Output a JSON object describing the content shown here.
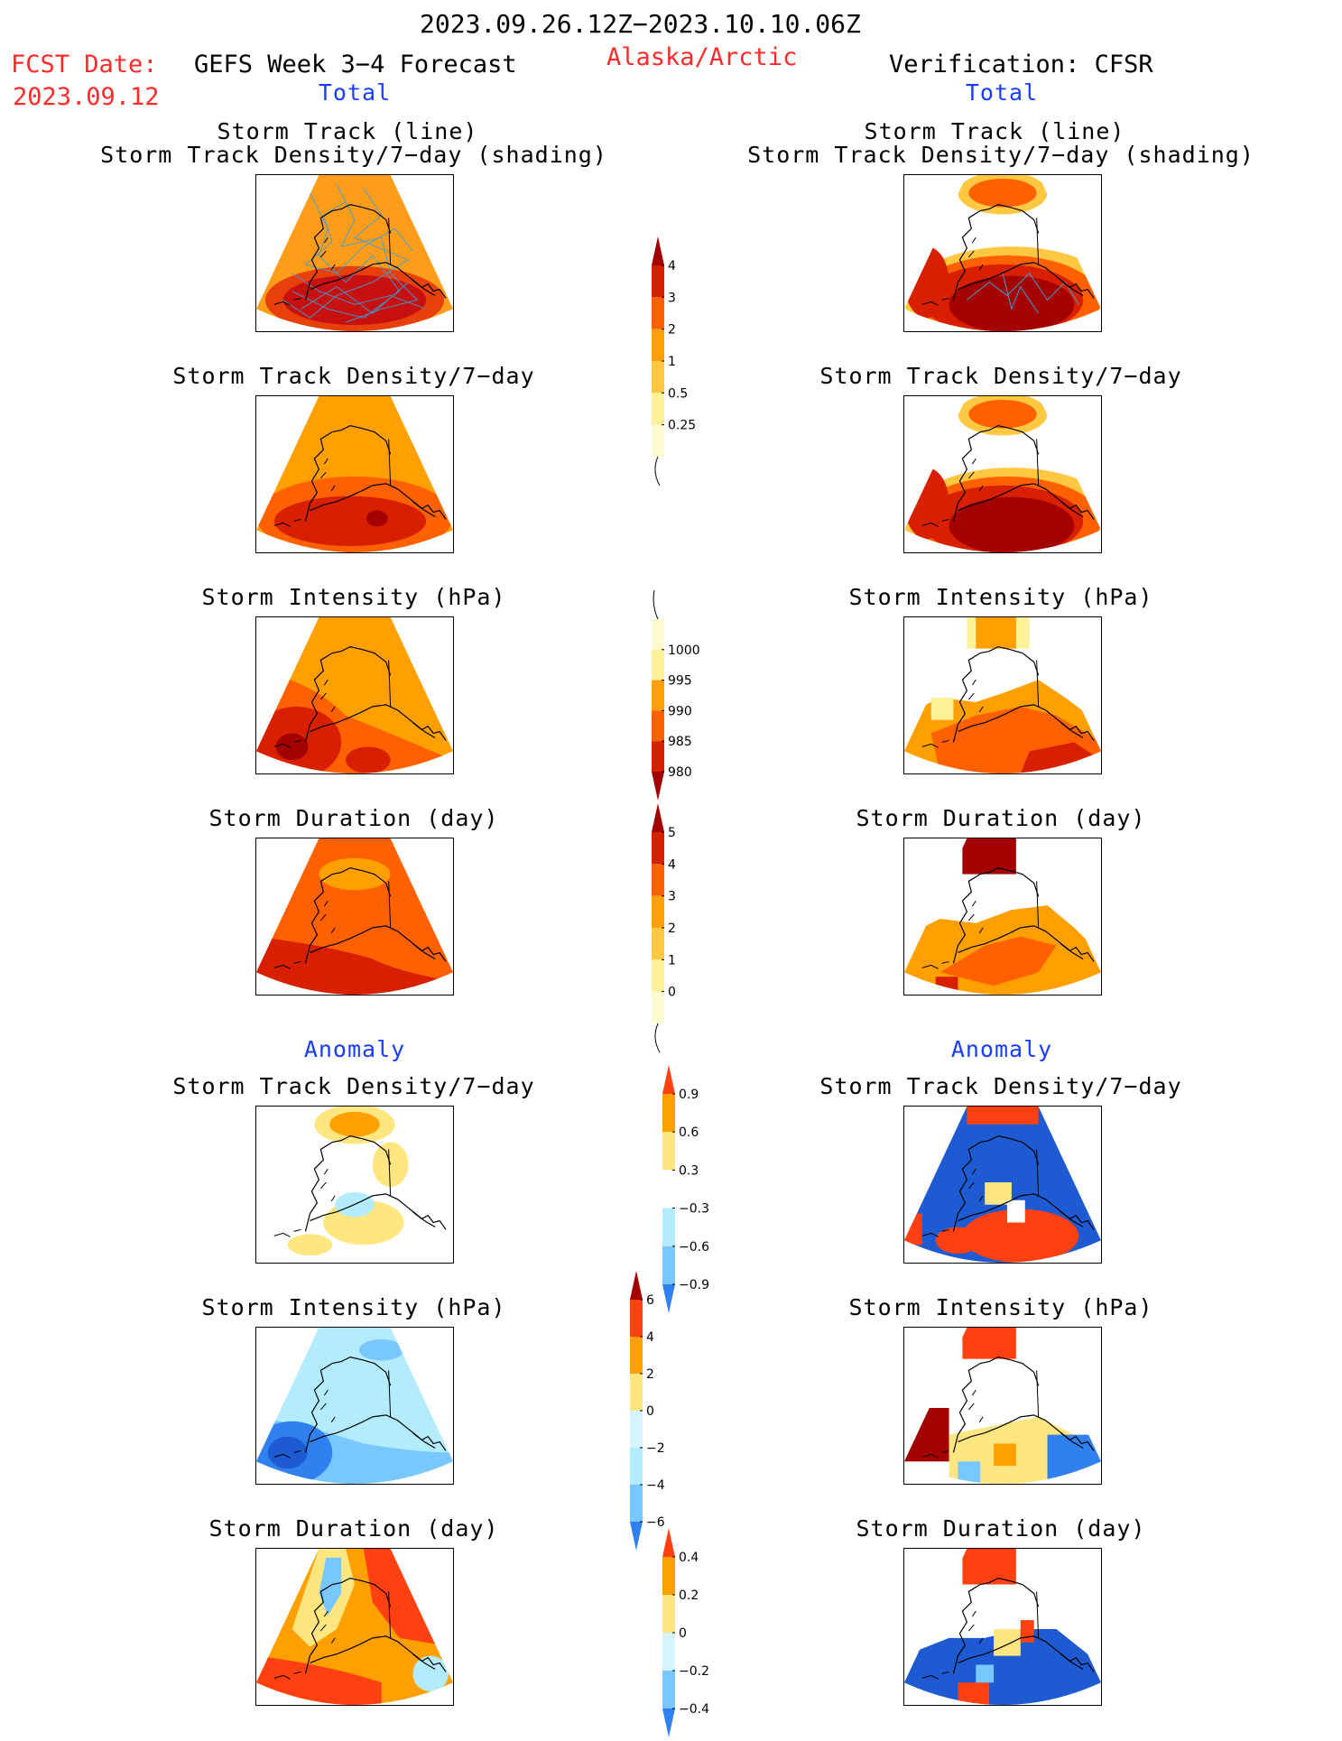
{
  "header": {
    "period": "2023.09.26.12Z−2023.10.10.06Z",
    "fcst_label": "FCST Date:",
    "fcst_date": "2023.09.12",
    "model": "GEFS Week 3−4 Forecast",
    "region": "Alaska/Arctic",
    "verification": "Verification: CFSR",
    "left_section": "Total",
    "right_section": "Total",
    "anomaly_left": "Anomaly",
    "anomaly_right": "Anomaly"
  },
  "panel_titles": {
    "track_line": "Storm Track (line)",
    "track_shading": "Storm Track Density/7−day (shading)",
    "density": "Storm Track Density/7−day",
    "intensity": "Storm Intensity (hPa)",
    "duration": "Storm Duration (day)"
  },
  "colorbars": {
    "density": {
      "labels": [
        "4",
        "3",
        "2",
        "1",
        "0.5",
        "0.25"
      ],
      "colors": [
        "#a50000",
        "#d82000",
        "#ff6000",
        "#ffa000",
        "#ffc840",
        "#fff09a",
        "#fffbd0"
      ]
    },
    "intensity": {
      "labels": [
        "1000",
        "995",
        "990",
        "985",
        "980"
      ],
      "colors": [
        "#fffbd0",
        "#fff09a",
        "#ffa000",
        "#ff6000",
        "#d82000",
        "#a50000"
      ]
    },
    "duration": {
      "labels": [
        "5",
        "4",
        "3",
        "2",
        "1",
        "0"
      ],
      "colors": [
        "#a50000",
        "#d82000",
        "#ff6000",
        "#ffa000",
        "#ffc840",
        "#fff09a",
        "#fffbd0"
      ]
    },
    "anom_density": {
      "labels": [
        "0.9",
        "0.6",
        "0.3",
        "−0.3",
        "−0.6",
        "−0.9"
      ],
      "colors": [
        "#ff4010",
        "#ffa000",
        "#ffe680",
        "#ffffff",
        "#b4ecff",
        "#78c8ff",
        "#3080f0"
      ]
    },
    "anom_intensity": {
      "labels": [
        "6",
        "4",
        "2",
        "0",
        "−2",
        "−4",
        "−6"
      ],
      "colors": [
        "#a50000",
        "#ff4010",
        "#ffa000",
        "#ffe680",
        "#d6f4ff",
        "#b4ecff",
        "#78c8ff",
        "#3080f0"
      ]
    },
    "anom_duration": {
      "labels": [
        "0.4",
        "0.2",
        "0",
        "−0.2",
        "−0.4"
      ],
      "colors": [
        "#ff4010",
        "#ffa000",
        "#ffe680",
        "#d6f4ff",
        "#78c8ff",
        "#3080f0"
      ]
    }
  }
}
